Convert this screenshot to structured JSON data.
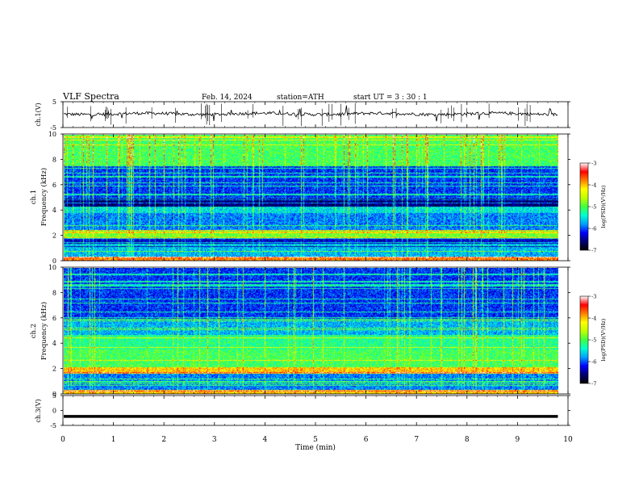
{
  "header": {
    "title": "VLF  Spectra",
    "date": "Feb. 14, 2024",
    "station": "station=ATH",
    "start_ut": "start  UT  =    3  : 30 : 1"
  },
  "chart_data": [
    {
      "type": "line",
      "panel": "ch1-waveform",
      "ylabel": "ch.1(V)",
      "ylim": [
        -5,
        5
      ],
      "yticks": [
        "5",
        "-5"
      ],
      "baseline": 0,
      "xlim": [
        0,
        10
      ],
      "x_end": 9.8
    },
    {
      "type": "heatmap",
      "panel": "ch1-spectrogram",
      "ylabel": "ch.1\nFrequency (kHz)",
      "ylim": [
        0,
        10
      ],
      "yticks": [
        "0",
        "2",
        "4",
        "6",
        "8",
        "10"
      ],
      "xlim": [
        0,
        10
      ],
      "x_end": 9.8,
      "colorbar": {
        "label": "log(PSD)(V²/Hz)",
        "range": [
          -7,
          -3
        ],
        "ticks": [
          "-3",
          "-4",
          "-5",
          "-6",
          "-7"
        ]
      },
      "bands": [
        {
          "freq": [
            0.0,
            0.3
          ],
          "level": -3.5
        },
        {
          "freq": [
            0.3,
            1.0
          ],
          "level": -5.8
        },
        {
          "freq": [
            1.0,
            1.8
          ],
          "level": -6.6
        },
        {
          "freq": [
            1.8,
            2.4
          ],
          "level": -4.8
        },
        {
          "freq": [
            2.4,
            3.8
          ],
          "level": -6.0
        },
        {
          "freq": [
            3.8,
            4.3
          ],
          "level": -5.6
        },
        {
          "freq": [
            4.3,
            5.0
          ],
          "level": -6.9
        },
        {
          "freq": [
            5.0,
            7.5
          ],
          "level": -6.3
        },
        {
          "freq": [
            7.5,
            10.0
          ],
          "level": -5.0
        }
      ]
    },
    {
      "type": "heatmap",
      "panel": "ch2-spectrogram",
      "ylabel": "ch.2\nFrequency (kHz)",
      "ylim": [
        0,
        10
      ],
      "yticks": [
        "0",
        "2",
        "4",
        "6",
        "8",
        "10"
      ],
      "xlim": [
        0,
        10
      ],
      "x_end": 9.8,
      "colorbar": {
        "label": "log(PSD)(V²/Hz)",
        "range": [
          -7,
          -3
        ],
        "ticks": [
          "-3",
          "-4",
          "-5",
          "-6",
          "-7"
        ]
      },
      "bands": [
        {
          "freq": [
            0.0,
            0.3
          ],
          "level": -3.8
        },
        {
          "freq": [
            0.3,
            1.6
          ],
          "level": -6.0
        },
        {
          "freq": [
            1.6,
            2.1
          ],
          "level": -3.8
        },
        {
          "freq": [
            2.1,
            3.5
          ],
          "level": -5.0
        },
        {
          "freq": [
            3.5,
            4.7
          ],
          "level": -5.2
        },
        {
          "freq": [
            4.7,
            6.0
          ],
          "level": -5.8
        },
        {
          "freq": [
            6.0,
            10.0
          ],
          "level": -6.3
        }
      ]
    },
    {
      "type": "line",
      "panel": "ch3-waveform",
      "ylabel": "ch.3(V)",
      "ylim": [
        -5,
        5
      ],
      "yticks": [
        "5",
        "0",
        "-5"
      ],
      "baseline": -2,
      "xlim": [
        0,
        10
      ],
      "x_end": 9.8,
      "xlabel": "Time  (min)",
      "xticks": [
        "0",
        "1",
        "2",
        "3",
        "4",
        "5",
        "6",
        "7",
        "8",
        "9",
        "10"
      ]
    }
  ],
  "colors": {
    "axis": "#000000",
    "waveform": "#000000",
    "colormap": [
      "#000000",
      "#000070",
      "#0000ff",
      "#00a0ff",
      "#00ffd0",
      "#40ff40",
      "#c0ff00",
      "#ffff00",
      "#ff8000",
      "#ff0000",
      "#ffffff"
    ]
  }
}
